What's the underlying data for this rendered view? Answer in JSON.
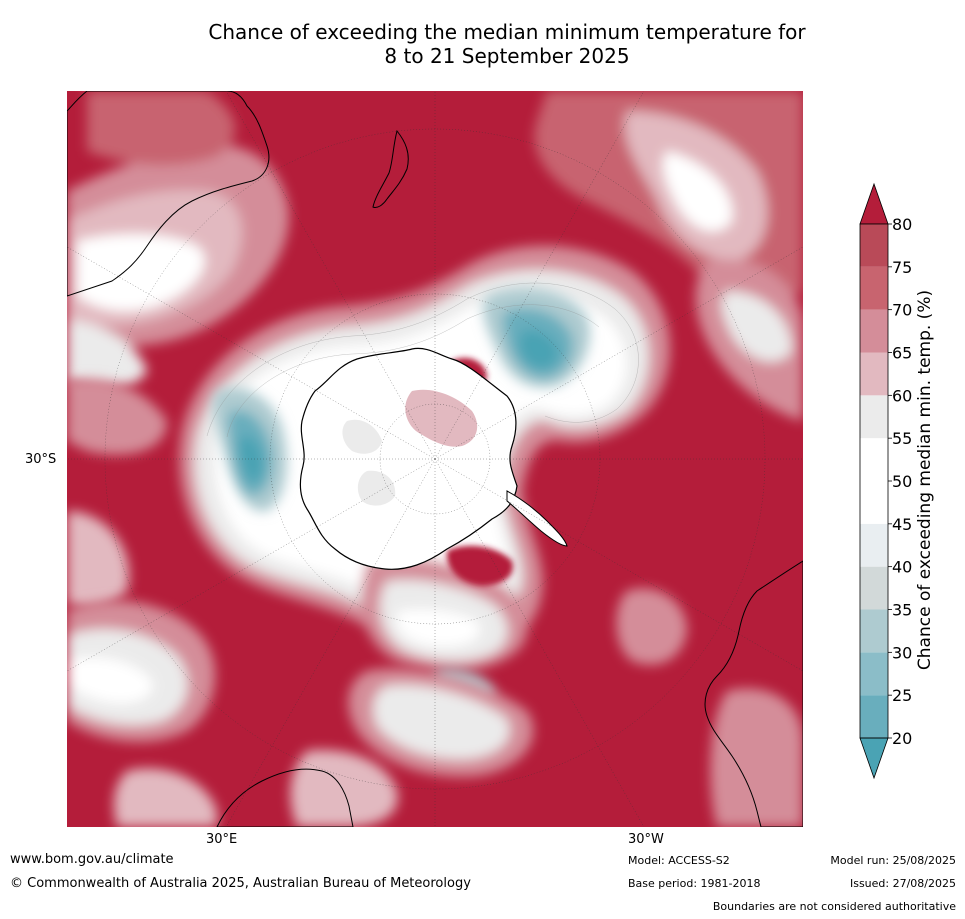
{
  "title_line1": "Chance of exceeding the median minimum temperature for",
  "title_line2": "8 to 21 September 2025",
  "axis_labels": {
    "lat": "30°S",
    "lon_east": "30°E",
    "lon_west": "30°W"
  },
  "colorbar": {
    "label": "Chance of exceeding median min. temp. (%)",
    "ticks": [
      "20",
      "25",
      "30",
      "35",
      "40",
      "45",
      "50",
      "55",
      "60",
      "65",
      "70",
      "75",
      "80"
    ],
    "colors": [
      "#4aa3b4",
      "#69aebd",
      "#8bbdc8",
      "#aecbd0",
      "#d2d9d9",
      "#e9eef1",
      "#ffffff",
      "#ffffff",
      "#ebebeb",
      "#e2b9c0",
      "#d48d99",
      "#c8646f",
      "#b94a58",
      "#b41d3a"
    ],
    "under_color": "#4aa3b4",
    "over_color": "#b41d3a"
  },
  "footer": {
    "website": "www.bom.gov.au/climate",
    "copyright": "© Commonwealth of Australia 2025, Australian Bureau of Meteorology",
    "model": "Model: ACCESS-S2",
    "base_period": "Base period: 1981-2018",
    "model_run": "Model run: 25/08/2025",
    "issued": "Issued: 27/08/2025",
    "disclaimer": "Boundaries are not considered authoritative"
  }
}
